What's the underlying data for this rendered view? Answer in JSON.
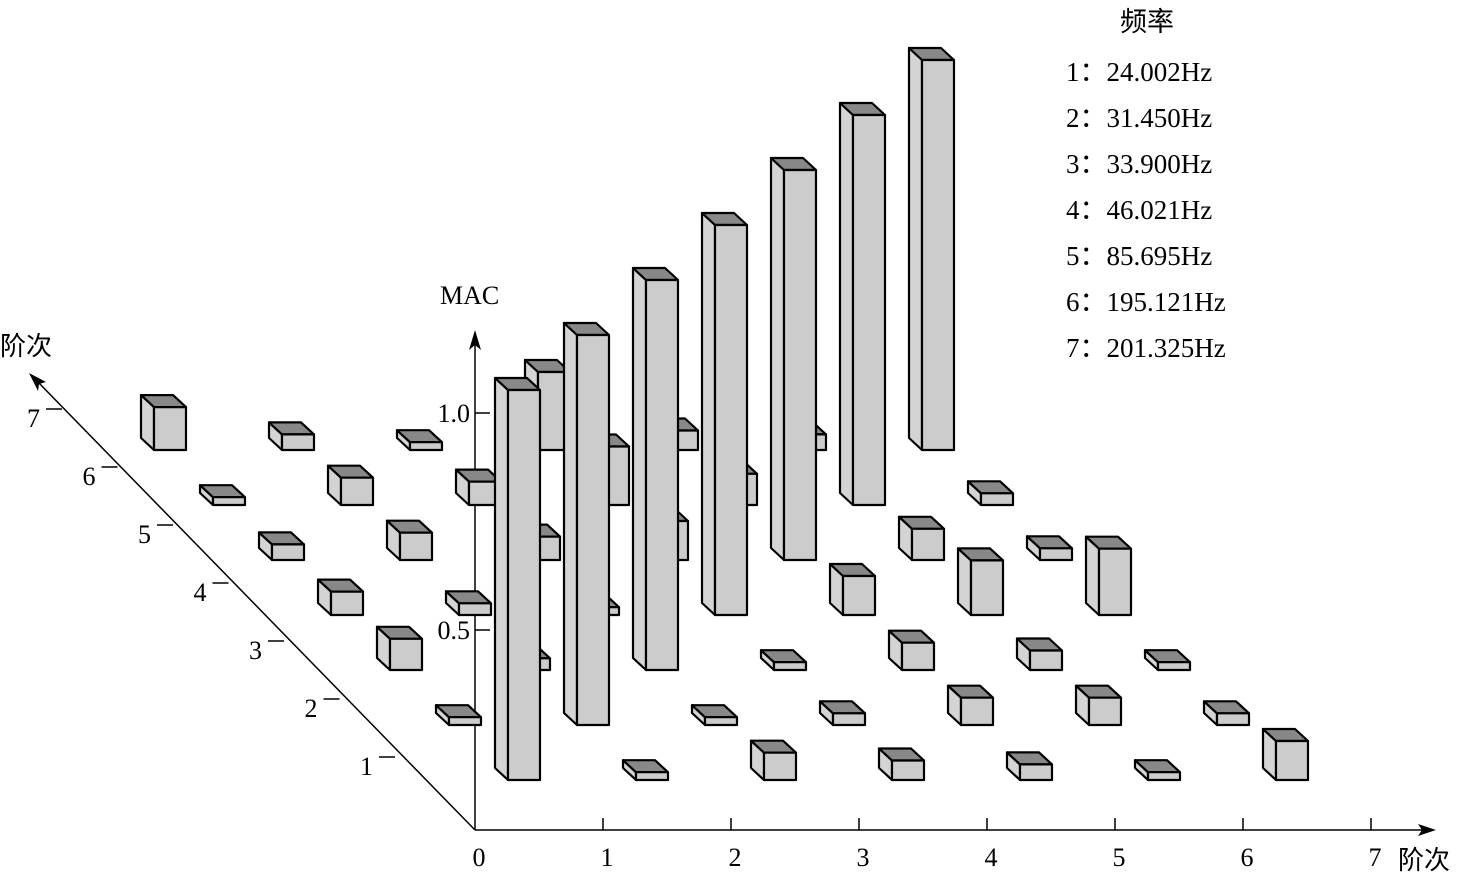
{
  "chart_data": {
    "type": "bar3d",
    "title": "",
    "xlabel": "阶次",
    "ylabel": "阶次",
    "zlabel": "MAC",
    "x_ticks": [
      "0",
      "1",
      "2",
      "3",
      "4",
      "5",
      "6",
      "7"
    ],
    "y_ticks": [
      "1",
      "2",
      "3",
      "4",
      "5",
      "6",
      "7"
    ],
    "z_ticks": [
      "0.5",
      "1.0"
    ],
    "zlim": [
      0,
      1.0
    ],
    "legend_title": "频率",
    "legend": [
      "1：24.002Hz",
      "2：31.450Hz",
      "3：33.900Hz",
      "4：46.021Hz",
      "5：85.695Hz",
      "6：195.121Hz",
      "7：201.325Hz"
    ],
    "legend_position": "top-right",
    "mac_matrix_rows_y_cols_x": [
      [
        1.0,
        0.02,
        0.07,
        0.05,
        0.04,
        0.02,
        0.1
      ],
      [
        0.02,
        1.0,
        0.02,
        0.03,
        0.07,
        0.07,
        0.03
      ],
      [
        0.08,
        0.03,
        1.0,
        0.02,
        0.07,
        0.05,
        0.02
      ],
      [
        0.06,
        0.03,
        0.02,
        1.0,
        0.1,
        0.14,
        0.17
      ],
      [
        0.04,
        0.07,
        0.06,
        0.1,
        1.0,
        0.08,
        0.03
      ],
      [
        0.02,
        0.07,
        0.06,
        0.15,
        0.08,
        1.0,
        0.03
      ],
      [
        0.11,
        0.04,
        0.02,
        0.2,
        0.05,
        0.04,
        1.0
      ]
    ],
    "colors": {
      "front": "#cccccc",
      "top": "#888888",
      "side": "#d4d4d4",
      "edge": "#000000"
    }
  }
}
